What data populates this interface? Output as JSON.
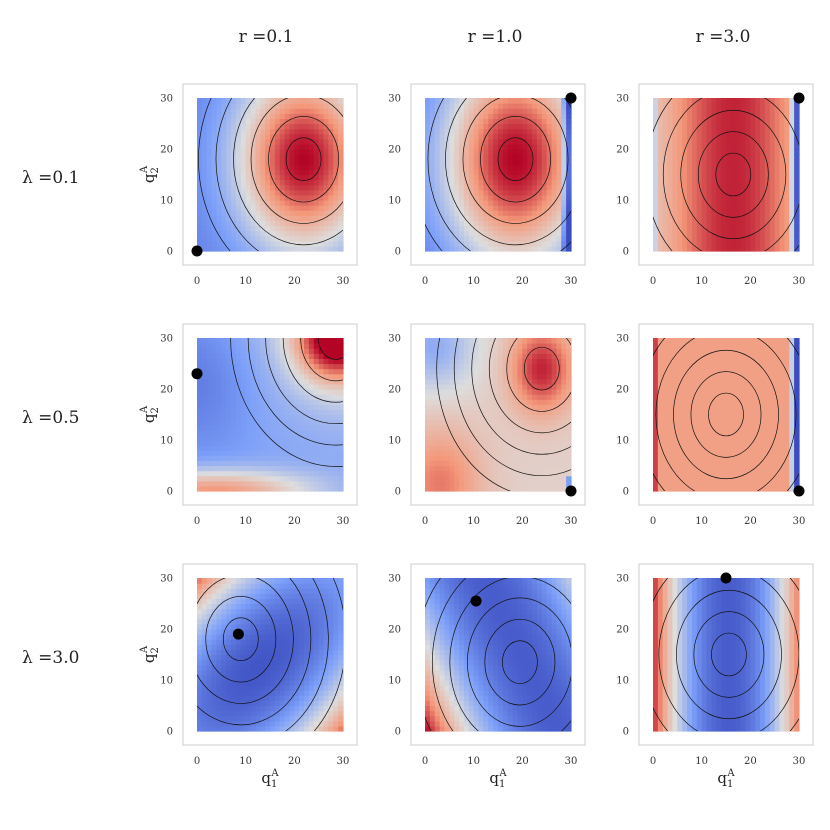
{
  "chart_data": {
    "type": "heatmap",
    "layout": "3x3 grid of contour heatmaps",
    "colormap": "coolwarm",
    "colormap_colors": {
      "low": "#3b4cc0",
      "mid": "#dddddd",
      "high": "#b40426"
    },
    "col_titles": [
      "r =0.1",
      "r =1.0",
      "r =3.0"
    ],
    "row_titles": [
      "λ =0.1",
      "λ =0.5",
      "λ =3.0"
    ],
    "xlabel": {
      "base": "q",
      "sub": "1",
      "sup": "A"
    },
    "ylabel": {
      "base": "q",
      "sub": "2",
      "sup": "A"
    },
    "xlim": [
      0,
      30
    ],
    "ylim": [
      0,
      30
    ],
    "xticks": [
      0,
      10,
      20,
      30
    ],
    "yticks": [
      0,
      10,
      20,
      30
    ],
    "panels": [
      {
        "row": 0,
        "col": 0,
        "label": "λ=0.1, r=0.1",
        "marker": [
          0,
          0
        ]
      },
      {
        "row": 0,
        "col": 1,
        "label": "λ=0.1, r=1.0",
        "marker": [
          30,
          30
        ]
      },
      {
        "row": 0,
        "col": 2,
        "label": "λ=0.1, r=3.0",
        "marker": [
          30,
          30
        ]
      },
      {
        "row": 1,
        "col": 0,
        "label": "λ=0.5, r=0.1",
        "marker": [
          0,
          23
        ]
      },
      {
        "row": 1,
        "col": 1,
        "label": "λ=0.5, r=1.0",
        "marker": [
          30,
          0
        ]
      },
      {
        "row": 1,
        "col": 2,
        "label": "λ=0.5, r=3.0",
        "marker": [
          30,
          0
        ]
      },
      {
        "row": 2,
        "col": 0,
        "label": "λ=3.0, r=0.1",
        "marker": [
          8.5,
          19
        ]
      },
      {
        "row": 2,
        "col": 1,
        "label": "λ=3.0, r=1.0",
        "marker": [
          10.5,
          25.5
        ]
      },
      {
        "row": 2,
        "col": 2,
        "label": "λ=3.0, r=3.0",
        "marker": [
          15,
          30
        ]
      }
    ]
  }
}
